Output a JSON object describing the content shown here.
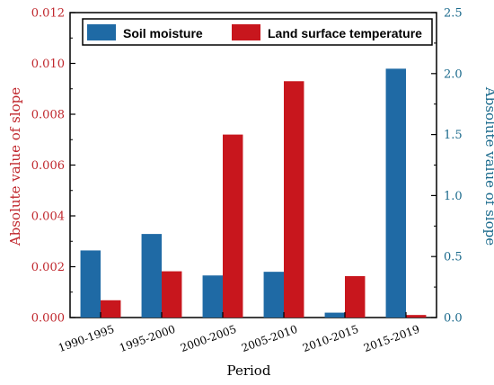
{
  "chart_data": {
    "type": "bar",
    "categories": [
      "1990-1995",
      "1995-2000",
      "2000-2005",
      "2005-2010",
      "2010-2015",
      "2015-2019"
    ],
    "series": [
      {
        "name": "Soil moisture",
        "axis": "right",
        "color": "#1f6aa5",
        "values": [
          0.55,
          0.685,
          0.345,
          0.375,
          0.04,
          2.04
        ]
      },
      {
        "name": "Land surface temperature",
        "axis": "left",
        "color": "#c8161d",
        "values": [
          0.00068,
          0.00182,
          0.0072,
          0.0093,
          0.00163,
          0.0001
        ]
      }
    ],
    "xlabel": "Period",
    "ylabel_left": "Absolute value of slope",
    "ylabel_right": "Absolute value of slope",
    "ylim_left": [
      0,
      0.012
    ],
    "ylim_right": [
      0,
      2.5
    ],
    "yticks_left": [
      "0.000",
      "0.002",
      "0.004",
      "0.006",
      "0.008",
      "0.010",
      "0.012"
    ],
    "yticks_right": [
      "0.0",
      "0.5",
      "1.0",
      "1.5",
      "2.0",
      "2.5"
    ],
    "left_axis_color": "#c0272d",
    "right_axis_color": "#1b6a8c",
    "grid": false,
    "legend": "top"
  }
}
